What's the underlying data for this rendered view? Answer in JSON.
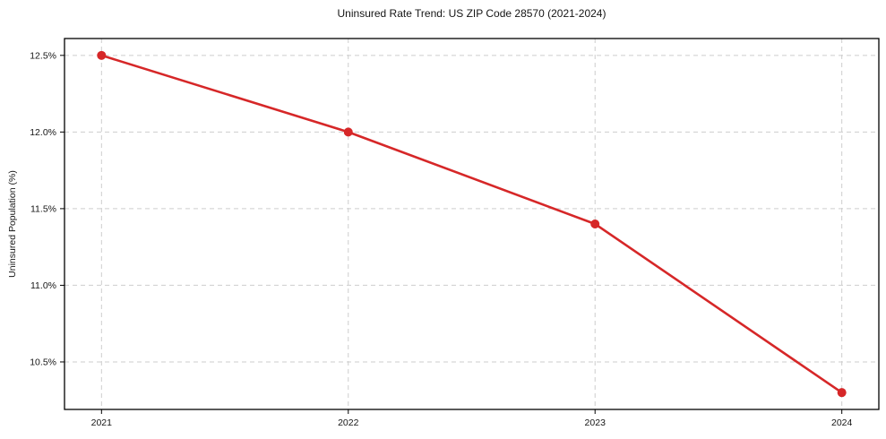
{
  "figure": {
    "title": "Uninsured Rate Trend: US ZIP Code 28570 (2021-2024)",
    "ylabel": "Uninsured Population (%)"
  },
  "chart_data": {
    "type": "line",
    "title": "Uninsured Rate Trend: US ZIP Code 28570 (2021-2024)",
    "xlabel": "",
    "ylabel": "Uninsured Population (%)",
    "x": [
      2021,
      2022,
      2023,
      2024
    ],
    "series": [
      {
        "name": "Uninsured Population (%)",
        "values": [
          12.5,
          12.0,
          11.4,
          10.3
        ]
      }
    ],
    "x_ticks": [
      2021,
      2022,
      2023,
      2024
    ],
    "x_tick_labels": [
      "2021",
      "2022",
      "2023",
      "2024"
    ],
    "y_ticks": [
      10.5,
      11.0,
      11.5,
      12.0,
      12.5
    ],
    "y_tick_labels": [
      "10.5%",
      "11.0%",
      "11.5%",
      "12.0%",
      "12.5%"
    ],
    "xlim": [
      2020.85,
      2024.15
    ],
    "ylim": [
      10.19,
      12.61
    ],
    "grid": true,
    "grid_style": "dashed",
    "legend": "none",
    "colors": {
      "line": "#d62728",
      "marker": "#d62728",
      "grid": "#cdcdcd",
      "spine": "#000000",
      "text": "#151515",
      "background": "#ffffff"
    }
  }
}
